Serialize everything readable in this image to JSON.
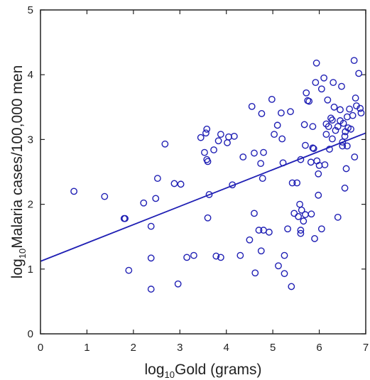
{
  "chart_data": {
    "type": "scatter",
    "title": "",
    "xlabel": {
      "prefix": "log",
      "subscript": "10",
      "rest": "Gold (grams)"
    },
    "ylabel": {
      "prefix": "log",
      "subscript": "10",
      "rest": "Malaria cases/100,000 men"
    },
    "xlim": [
      0,
      7
    ],
    "ylim": [
      0,
      5
    ],
    "x_ticks": [
      "0",
      "1",
      "2",
      "3",
      "4",
      "5",
      "6",
      "7"
    ],
    "y_ticks": [
      "0",
      "1",
      "2",
      "3",
      "4",
      "5"
    ],
    "grid": false,
    "legend": "none",
    "marker_color": "#1f1fb4",
    "line_color": "#1f1fb4",
    "trendline": {
      "x": [
        0,
        7
      ],
      "y": [
        1.12,
        3.1
      ]
    },
    "points": [
      [
        0.72,
        2.2
      ],
      [
        1.38,
        2.12
      ],
      [
        1.8,
        1.78
      ],
      [
        1.82,
        1.78
      ],
      [
        1.9,
        0.98
      ],
      [
        2.22,
        2.02
      ],
      [
        2.38,
        1.66
      ],
      [
        2.38,
        1.17
      ],
      [
        2.38,
        0.69
      ],
      [
        2.48,
        2.09
      ],
      [
        2.52,
        2.4
      ],
      [
        2.68,
        2.93
      ],
      [
        2.88,
        2.32
      ],
      [
        2.96,
        0.77
      ],
      [
        3.02,
        2.31
      ],
      [
        3.15,
        1.18
      ],
      [
        3.3,
        1.21
      ],
      [
        3.45,
        3.03
      ],
      [
        3.53,
        2.8
      ],
      [
        3.56,
        3.1
      ],
      [
        3.58,
        3.16
      ],
      [
        3.58,
        2.69
      ],
      [
        3.6,
        2.66
      ],
      [
        3.6,
        1.79
      ],
      [
        3.63,
        2.15
      ],
      [
        3.73,
        2.84
      ],
      [
        3.78,
        1.2
      ],
      [
        3.83,
        2.98
      ],
      [
        3.88,
        3.08
      ],
      [
        3.88,
        1.18
      ],
      [
        4.02,
        2.95
      ],
      [
        4.05,
        3.04
      ],
      [
        4.13,
        2.3
      ],
      [
        4.17,
        3.05
      ],
      [
        4.3,
        1.21
      ],
      [
        4.36,
        2.73
      ],
      [
        4.5,
        1.45
      ],
      [
        4.55,
        3.51
      ],
      [
        4.6,
        1.86
      ],
      [
        4.6,
        2.79
      ],
      [
        4.62,
        0.94
      ],
      [
        4.7,
        1.6
      ],
      [
        4.74,
        2.63
      ],
      [
        4.75,
        1.28
      ],
      [
        4.76,
        3.4
      ],
      [
        4.78,
        2.4
      ],
      [
        4.8,
        1.6
      ],
      [
        4.8,
        2.8
      ],
      [
        4.92,
        1.57
      ],
      [
        4.98,
        3.62
      ],
      [
        5.03,
        3.08
      ],
      [
        5.1,
        3.22
      ],
      [
        5.12,
        1.05
      ],
      [
        5.18,
        3.41
      ],
      [
        5.2,
        3.01
      ],
      [
        5.22,
        2.64
      ],
      [
        5.25,
        1.21
      ],
      [
        5.25,
        0.93
      ],
      [
        5.32,
        1.62
      ],
      [
        5.38,
        3.43
      ],
      [
        5.4,
        0.73
      ],
      [
        5.42,
        2.33
      ],
      [
        5.46,
        1.86
      ],
      [
        5.52,
        2.33
      ],
      [
        5.55,
        1.81
      ],
      [
        5.58,
        2.0
      ],
      [
        5.6,
        2.69
      ],
      [
        5.6,
        1.6
      ],
      [
        5.6,
        1.55
      ],
      [
        5.62,
        1.91
      ],
      [
        5.66,
        1.74
      ],
      [
        5.68,
        3.23
      ],
      [
        5.7,
        2.91
      ],
      [
        5.7,
        1.84
      ],
      [
        5.72,
        3.72
      ],
      [
        5.75,
        3.6
      ],
      [
        5.78,
        3.59
      ],
      [
        5.82,
        2.65
      ],
      [
        5.83,
        1.85
      ],
      [
        5.86,
        3.2
      ],
      [
        5.86,
        2.87
      ],
      [
        5.88,
        2.86
      ],
      [
        5.9,
        1.47
      ],
      [
        5.92,
        3.88
      ],
      [
        5.94,
        4.18
      ],
      [
        5.95,
        2.67
      ],
      [
        5.98,
        2.14
      ],
      [
        5.98,
        2.47
      ],
      [
        6.0,
        2.6
      ],
      [
        6.05,
        3.78
      ],
      [
        6.05,
        1.62
      ],
      [
        6.1,
        3.95
      ],
      [
        6.12,
        2.61
      ],
      [
        6.15,
        3.08
      ],
      [
        6.15,
        3.24
      ],
      [
        6.18,
        3.61
      ],
      [
        6.2,
        3.2
      ],
      [
        6.22,
        2.85
      ],
      [
        6.25,
        3.33
      ],
      [
        6.28,
        3.3
      ],
      [
        6.28,
        3.01
      ],
      [
        6.3,
        3.88
      ],
      [
        6.32,
        3.5
      ],
      [
        6.35,
        3.14
      ],
      [
        6.4,
        1.8
      ],
      [
        6.4,
        3.2
      ],
      [
        6.45,
        3.46
      ],
      [
        6.45,
        3.29
      ],
      [
        6.48,
        3.82
      ],
      [
        6.5,
        2.96
      ],
      [
        6.52,
        3.25
      ],
      [
        6.55,
        2.25
      ],
      [
        6.55,
        3.05
      ],
      [
        6.56,
        3.12
      ],
      [
        6.58,
        2.55
      ],
      [
        6.6,
        3.35
      ],
      [
        6.62,
        3.18
      ],
      [
        6.65,
        3.47
      ],
      [
        6.68,
        3.16
      ],
      [
        6.72,
        3.37
      ],
      [
        6.75,
        4.22
      ],
      [
        6.78,
        3.64
      ],
      [
        6.8,
        3.52
      ],
      [
        6.85,
        4.02
      ],
      [
        6.88,
        3.48
      ],
      [
        6.9,
        3.41
      ],
      [
        6.76,
        2.73
      ],
      [
        6.6,
        2.9
      ],
      [
        6.5,
        2.9
      ]
    ]
  }
}
